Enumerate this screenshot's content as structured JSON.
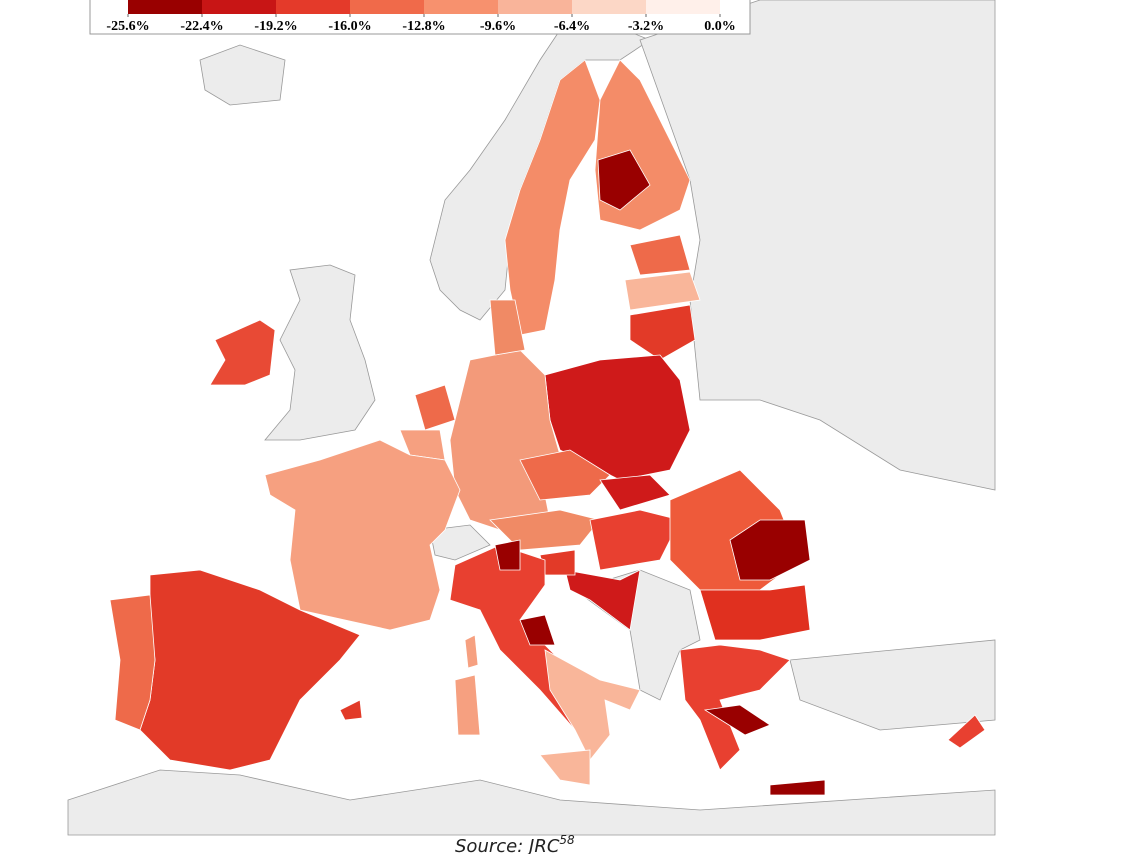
{
  "legend": {
    "ticks": [
      {
        "value": -25.6,
        "label": "-25.6%"
      },
      {
        "value": -22.4,
        "label": "-22.4%"
      },
      {
        "value": -19.2,
        "label": "-19.2%"
      },
      {
        "value": -16.0,
        "label": "-16.0%"
      },
      {
        "value": -12.8,
        "label": "-12.8%"
      },
      {
        "value": -9.6,
        "label": "-9.6%"
      },
      {
        "value": -6.4,
        "label": "-6.4%"
      },
      {
        "value": -3.2,
        "label": "-3.2%"
      },
      {
        "value": 0.0,
        "label": "0.0%"
      }
    ],
    "colors": [
      "#990000",
      "#c81515",
      "#e43a2a",
      "#f06a4a",
      "#f7916e",
      "#f9b49a",
      "#fcd7c6",
      "#fff0ea"
    ]
  },
  "source": {
    "text": "Source: JRC",
    "note": "58"
  }
}
